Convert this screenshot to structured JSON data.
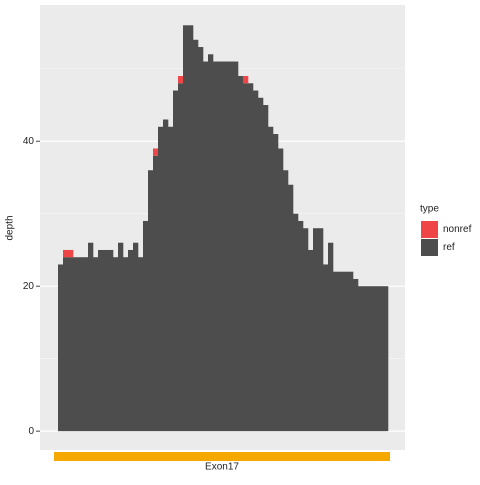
{
  "chart_data": {
    "type": "stacked_bar",
    "ylabel": "depth",
    "xlabel": "Exon17",
    "legend_title": "type",
    "ylim": [
      -2.6,
      58.8
    ],
    "yticks": [
      0,
      20,
      40
    ],
    "yminor": [
      10,
      30,
      50
    ],
    "grid": true,
    "legend": "right",
    "band_color": "#f5a800",
    "series": [
      {
        "name": "ref",
        "color": "#4d4d4d",
        "values": [
          23,
          24,
          24,
          24,
          24,
          24,
          26,
          24,
          25,
          25,
          25,
          24,
          26,
          24,
          25,
          26,
          24,
          29,
          36,
          38,
          42,
          43,
          42,
          47,
          48,
          56,
          56,
          54,
          53,
          51,
          52,
          51,
          51,
          51,
          51,
          51,
          49,
          48,
          48,
          47,
          46,
          45,
          42,
          41,
          39,
          36,
          34,
          30,
          29,
          28,
          25,
          28,
          28,
          23,
          26,
          22,
          22,
          22,
          22,
          21,
          20,
          20,
          20,
          20,
          20,
          20
        ]
      },
      {
        "name": "nonref",
        "color": "#f04546",
        "values": [
          0,
          1,
          1,
          0,
          0,
          0,
          0,
          0,
          0,
          0,
          0,
          0,
          0,
          0,
          0,
          0,
          0,
          0,
          0,
          1,
          0,
          0,
          0,
          0,
          1,
          0,
          0,
          0,
          0,
          0,
          0,
          0,
          0,
          0,
          0,
          0,
          0,
          1,
          0,
          0,
          0,
          0,
          0,
          0,
          0,
          0,
          0,
          0,
          0,
          0,
          0,
          0,
          0,
          0,
          0,
          0,
          0,
          0,
          0,
          0,
          0,
          0,
          0,
          0,
          0,
          0
        ]
      }
    ]
  }
}
